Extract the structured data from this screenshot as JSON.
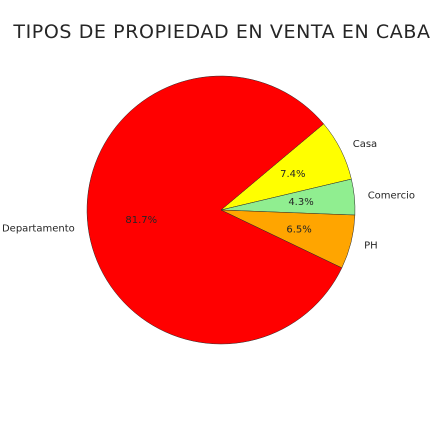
{
  "chart_data": {
    "type": "pie",
    "title": "TIPOS DE PROPIEDAD EN VENTA EN CABA",
    "categories": [
      "Casa",
      "Comercio",
      "PH",
      "Departamento"
    ],
    "values": [
      7.4,
      4.3,
      6.5,
      81.7
    ],
    "percent_labels": [
      "7.4%",
      "4.3%",
      "6.5%",
      "81.7%"
    ],
    "colors": [
      "#ffff00",
      "#90ee90",
      "#ffa500",
      "#ff0000"
    ],
    "start_angle_deg": 40,
    "direction": "clockwise",
    "legend": "none"
  }
}
